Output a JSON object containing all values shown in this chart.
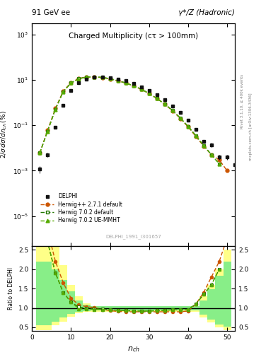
{
  "title_top": "91 GeV ee",
  "title_right": "γ*/Z (Hadronic)",
  "plot_title": "Charged Multiplicity (cτ > 100mm)",
  "ylabel_main": "2/σ dσ/dn_{ch} (%)",
  "ylabel_ratio": "Ratio to DELPHI",
  "xlabel": "n_{ch}",
  "watermark": "DELPHI_1991_I301657",
  "rivet_label": "Rivet 3.1.10, ≥ 400k events",
  "mcplots_label": "mcplots.cern.ch [arXiv:1306.3436]",
  "delphi_x": [
    2,
    4,
    6,
    8,
    10,
    12,
    14,
    16,
    18,
    20,
    22,
    24,
    26,
    28,
    30,
    32,
    34,
    36,
    38,
    40,
    42,
    44,
    46,
    48,
    50,
    52
  ],
  "delphi_y": [
    0.0012,
    0.005,
    0.08,
    0.75,
    3.5,
    7.5,
    11.0,
    13.0,
    13.5,
    12.5,
    11.0,
    9.0,
    7.0,
    5.0,
    3.5,
    2.2,
    1.3,
    0.7,
    0.37,
    0.17,
    0.065,
    0.02,
    0.014,
    0.004,
    0.004,
    0.0018
  ],
  "delphi_yerr": [
    0.0004,
    0.001,
    0.01,
    0.05,
    0.15,
    0.25,
    0.3,
    0.3,
    0.3,
    0.3,
    0.25,
    0.25,
    0.2,
    0.15,
    0.12,
    0.09,
    0.06,
    0.04,
    0.025,
    0.015,
    0.008,
    0.003,
    0.003,
    0.001,
    0.001,
    0.0005
  ],
  "hpp_x": [
    2,
    4,
    6,
    8,
    10,
    12,
    14,
    16,
    18,
    20,
    22,
    24,
    26,
    28,
    30,
    32,
    34,
    36,
    38,
    40,
    42,
    44,
    46,
    48,
    50
  ],
  "hpp_y": [
    0.006,
    0.06,
    0.55,
    3.2,
    7.5,
    11.5,
    13.5,
    13.5,
    12.5,
    11.0,
    9.0,
    7.2,
    5.5,
    3.8,
    2.5,
    1.5,
    0.85,
    0.43,
    0.2,
    0.085,
    0.032,
    0.012,
    0.005,
    0.003,
    0.001
  ],
  "h702_x": [
    2,
    4,
    6,
    8,
    10,
    12,
    14,
    16,
    18,
    20,
    22,
    24,
    26,
    28,
    30,
    32,
    34,
    36,
    38,
    40,
    42,
    44,
    46,
    48
  ],
  "h702_y": [
    0.006,
    0.055,
    0.5,
    3.0,
    7.2,
    11.2,
    13.3,
    13.5,
    12.8,
    11.2,
    9.2,
    7.3,
    5.5,
    3.9,
    2.5,
    1.52,
    0.87,
    0.45,
    0.21,
    0.09,
    0.035,
    0.013,
    0.005,
    0.002
  ],
  "hue_x": [
    2,
    4,
    6,
    8,
    10,
    12,
    14,
    16,
    18,
    20,
    22,
    24,
    26,
    28,
    30,
    32,
    34,
    36,
    38,
    40,
    42,
    44,
    46,
    48
  ],
  "hue_y": [
    0.006,
    0.055,
    0.5,
    3.0,
    7.2,
    11.0,
    13.2,
    13.5,
    12.8,
    11.2,
    9.2,
    7.3,
    5.5,
    3.9,
    2.5,
    1.52,
    0.87,
    0.45,
    0.21,
    0.09,
    0.035,
    0.013,
    0.005,
    0.002
  ],
  "ratio_hpp_x": [
    2,
    4,
    6,
    8,
    10,
    12,
    14,
    16,
    18,
    20,
    22,
    24,
    26,
    28,
    30,
    32,
    34,
    36,
    38,
    40,
    42,
    44,
    46,
    48,
    50
  ],
  "ratio_hpp_y": [
    5.0,
    3.0,
    2.2,
    1.65,
    1.25,
    1.08,
    1.03,
    1.01,
    0.96,
    0.93,
    0.91,
    0.9,
    0.9,
    0.9,
    0.9,
    0.9,
    0.9,
    0.9,
    0.9,
    0.92,
    1.1,
    1.4,
    1.8,
    2.2,
    2.8
  ],
  "ratio_h702_x": [
    2,
    4,
    6,
    8,
    10,
    12,
    14,
    16,
    18,
    20,
    22,
    24,
    26,
    28,
    30,
    32,
    34,
    36,
    38,
    40,
    42,
    44,
    46,
    48
  ],
  "ratio_h702_y": [
    5.0,
    2.7,
    1.9,
    1.4,
    1.15,
    1.02,
    1.0,
    0.98,
    0.97,
    0.95,
    0.94,
    0.93,
    0.92,
    0.92,
    0.92,
    0.93,
    0.94,
    0.95,
    0.95,
    0.96,
    1.1,
    1.35,
    1.6,
    2.0
  ],
  "ratio_hue_x": [
    2,
    4,
    6,
    8,
    10,
    12,
    14,
    16,
    18,
    20,
    22,
    24,
    26,
    28,
    30,
    32,
    34,
    36,
    38,
    40,
    42,
    44,
    46,
    48
  ],
  "ratio_hue_y": [
    5.0,
    2.7,
    1.9,
    1.4,
    1.15,
    0.98,
    0.97,
    0.96,
    0.96,
    0.95,
    0.94,
    0.93,
    0.92,
    0.92,
    0.92,
    0.93,
    0.94,
    0.95,
    0.95,
    0.96,
    1.1,
    1.35,
    1.6,
    2.0
  ],
  "band_yellow_x_edges": [
    1,
    3,
    5,
    7,
    9,
    11,
    13,
    15,
    17,
    19,
    21,
    23,
    25,
    27,
    29,
    31,
    33,
    35,
    37,
    39,
    41,
    43,
    45,
    47,
    49,
    51
  ],
  "band_yellow_lo": [
    0.42,
    0.42,
    0.55,
    0.65,
    0.78,
    0.86,
    0.9,
    0.9,
    0.9,
    0.9,
    0.9,
    0.9,
    0.9,
    0.9,
    0.9,
    0.9,
    0.9,
    0.9,
    0.9,
    0.9,
    0.9,
    0.75,
    0.62,
    0.5,
    0.42,
    0.42
  ],
  "band_yellow_hi": [
    2.6,
    2.6,
    2.6,
    2.1,
    1.6,
    1.3,
    1.12,
    1.05,
    1.05,
    1.05,
    1.05,
    1.05,
    1.05,
    1.05,
    1.05,
    1.05,
    1.05,
    1.05,
    1.05,
    1.05,
    1.05,
    1.3,
    1.6,
    2.0,
    2.5,
    2.6
  ],
  "band_green_x_edges": [
    1,
    3,
    5,
    7,
    9,
    11,
    13,
    15,
    17,
    19,
    21,
    23,
    25,
    27,
    29,
    31,
    33,
    35,
    37,
    39,
    41,
    43,
    45,
    47,
    49,
    51
  ],
  "band_green_lo": [
    0.55,
    0.55,
    0.65,
    0.76,
    0.84,
    0.9,
    0.92,
    0.93,
    0.93,
    0.93,
    0.93,
    0.93,
    0.93,
    0.93,
    0.93,
    0.93,
    0.93,
    0.93,
    0.93,
    0.93,
    0.93,
    0.82,
    0.7,
    0.58,
    0.52,
    0.52
  ],
  "band_green_hi": [
    2.2,
    2.2,
    2.0,
    1.72,
    1.42,
    1.2,
    1.08,
    1.04,
    1.04,
    1.04,
    1.04,
    1.04,
    1.04,
    1.04,
    1.04,
    1.04,
    1.04,
    1.04,
    1.04,
    1.04,
    1.04,
    1.2,
    1.48,
    1.82,
    2.2,
    2.2
  ],
  "color_delphi": "#111111",
  "color_hpp": "#cc5500",
  "color_h702": "#227700",
  "color_hue": "#55aa00",
  "color_yellow": "#ffff88",
  "color_green": "#88ee88",
  "xlim": [
    0,
    52
  ],
  "ylim_main": [
    5e-07,
    3000
  ],
  "ylim_ratio": [
    0.4,
    2.6
  ],
  "ratio_yticks": [
    0.5,
    1.0,
    1.5,
    2.0,
    2.5
  ]
}
